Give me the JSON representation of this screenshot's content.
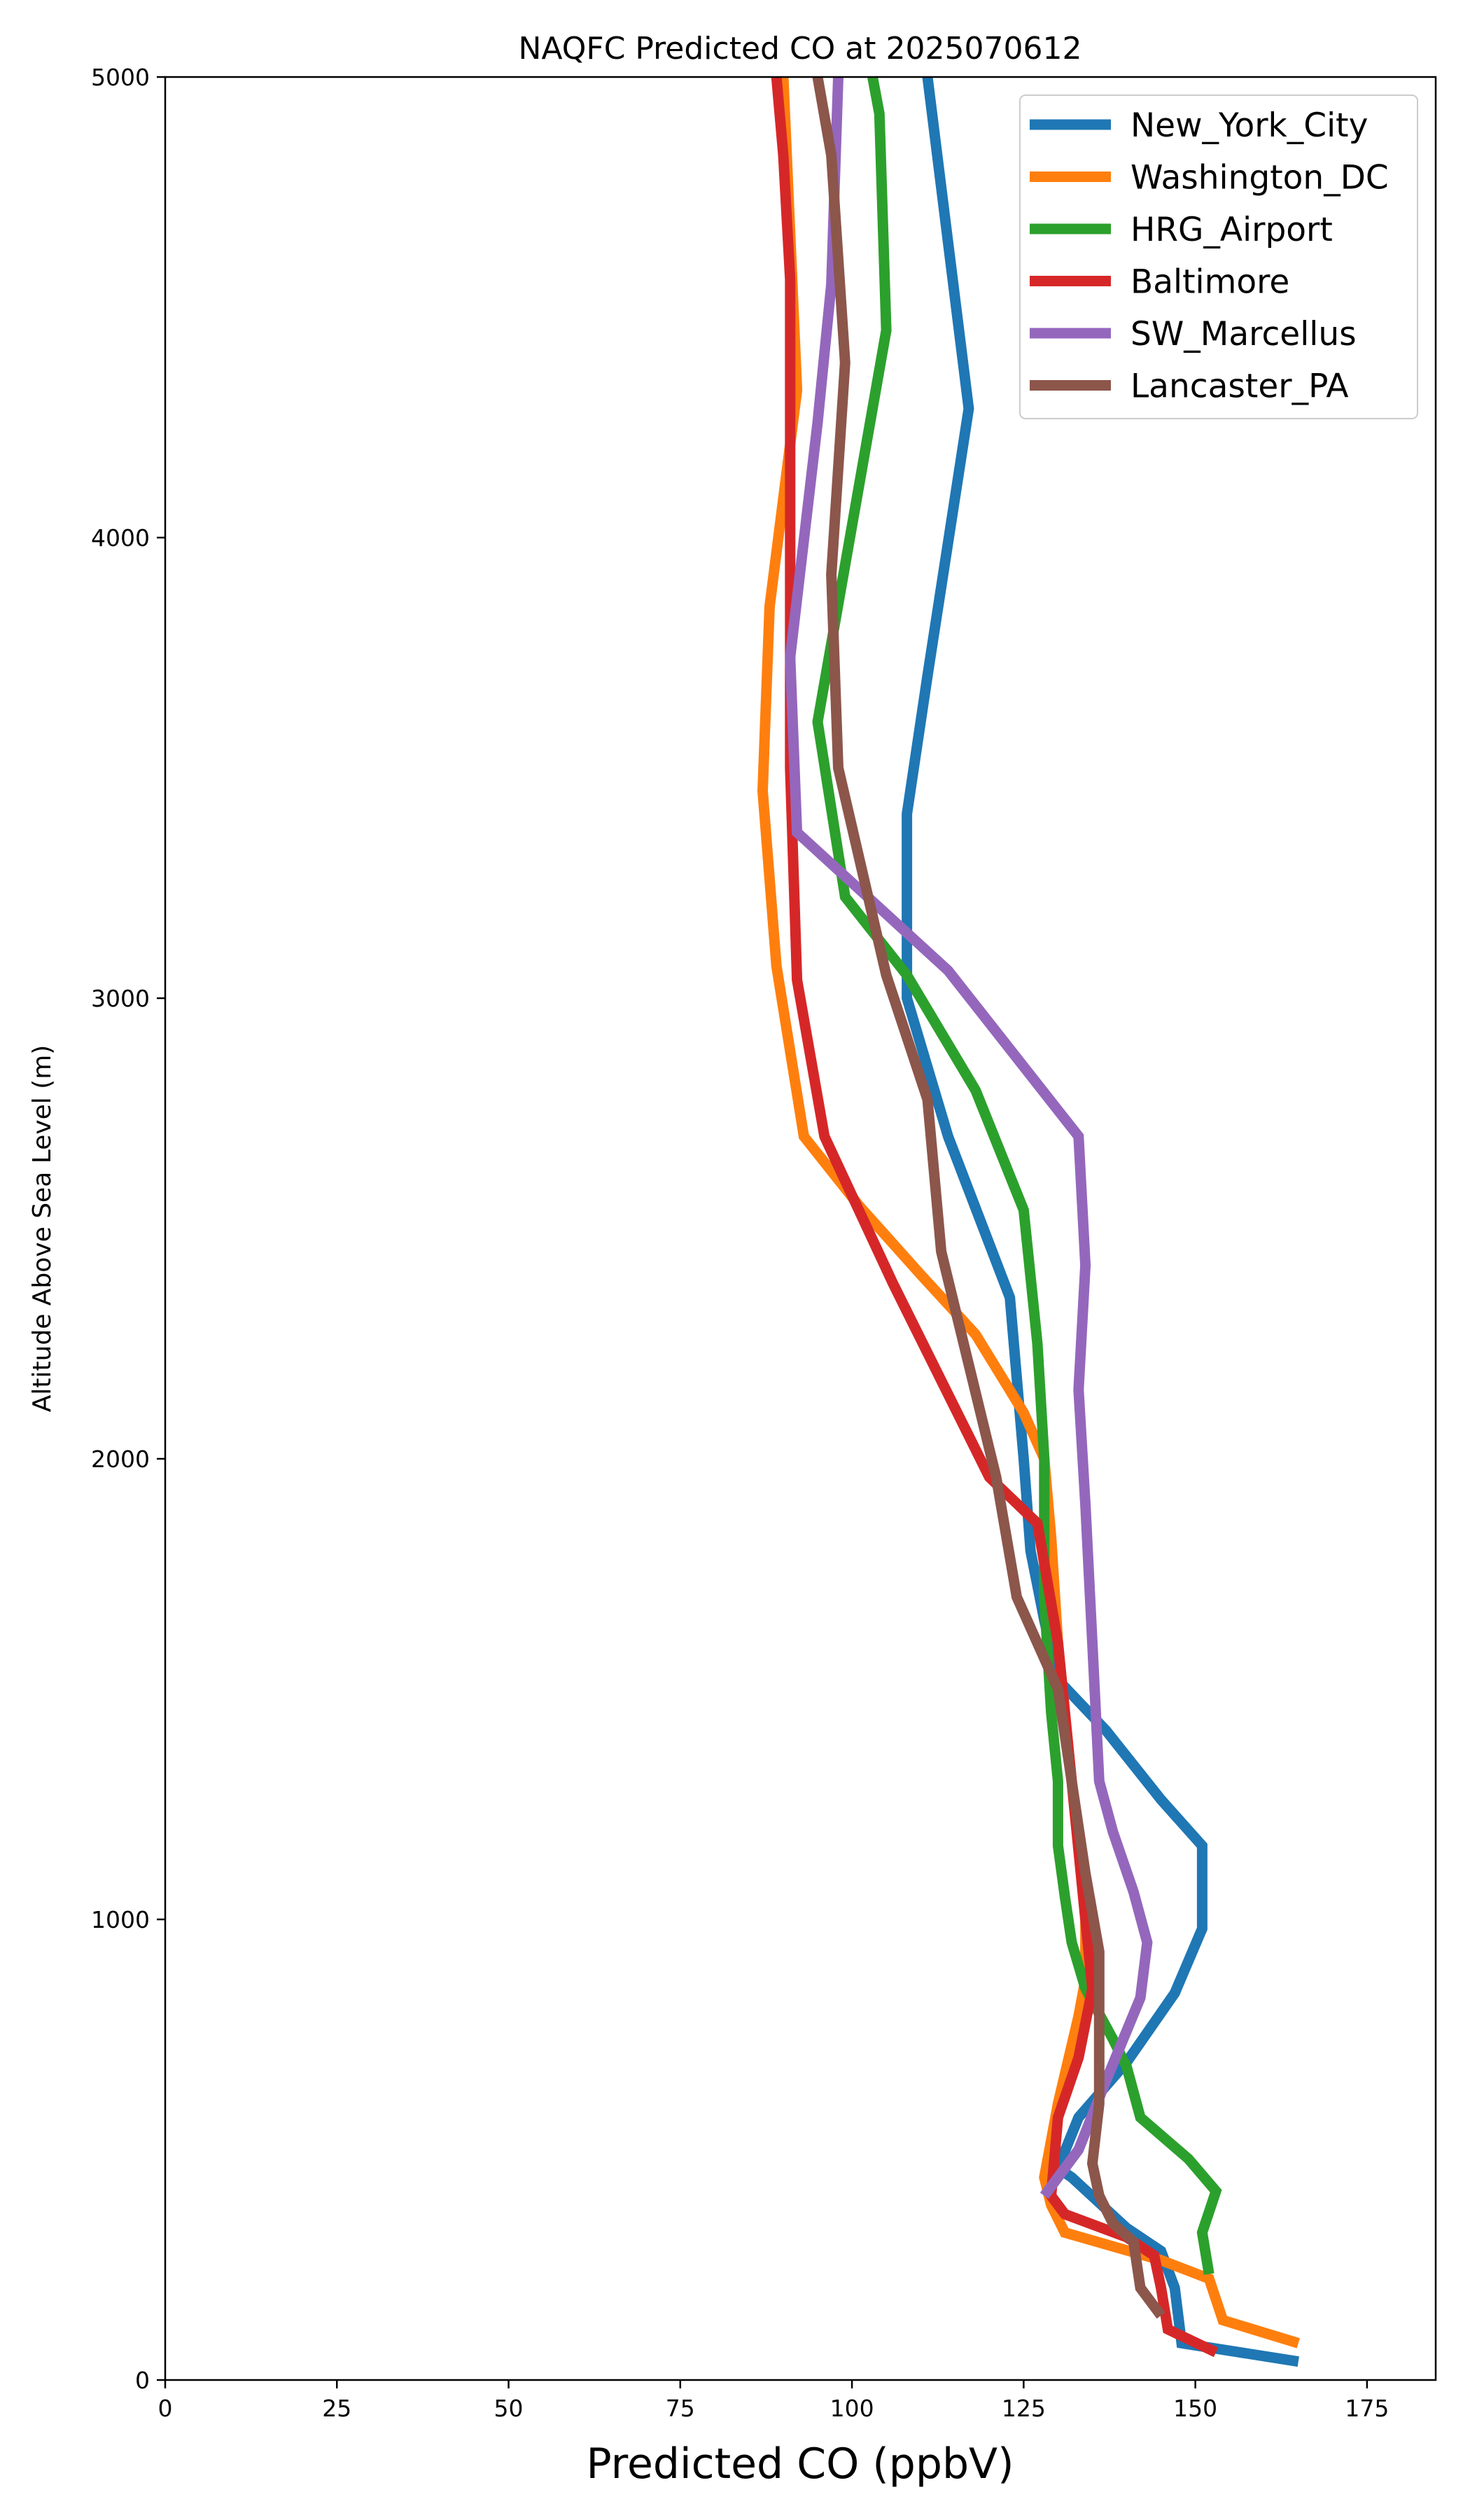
{
  "chart_data": {
    "type": "line",
    "title": "NAQFC Predicted CO at 2025070612",
    "xlabel": "Predicted CO (ppbV)",
    "ylabel": "Altitude Above Sea Level (m)",
    "xlim": [
      0,
      185
    ],
    "ylim": [
      0,
      5000
    ],
    "xticks": [
      0,
      25,
      50,
      75,
      100,
      125,
      150,
      175
    ],
    "yticks": [
      0,
      1000,
      2000,
      3000,
      4000,
      5000
    ],
    "grid": false,
    "legend_position": "top-right",
    "series": [
      {
        "name": "New_York_City",
        "color": "#1f77b4",
        "points": [
          [
            165,
            40
          ],
          [
            148,
            80
          ],
          [
            147,
            200
          ],
          [
            145,
            280
          ],
          [
            140,
            330
          ],
          [
            132,
            440
          ],
          [
            130,
            460
          ],
          [
            133,
            570
          ],
          [
            140,
            690
          ],
          [
            147,
            840
          ],
          [
            151,
            980
          ],
          [
            151,
            1160
          ],
          [
            145,
            1260
          ],
          [
            137,
            1410
          ],
          [
            130,
            1520
          ],
          [
            128,
            1650
          ],
          [
            126,
            1800
          ],
          [
            125,
            2000
          ],
          [
            123,
            2350
          ],
          [
            114,
            2700
          ],
          [
            108,
            3000
          ],
          [
            108,
            3400
          ],
          [
            111,
            3700
          ],
          [
            117,
            4280
          ],
          [
            111,
            5000
          ]
        ]
      },
      {
        "name": "Washington_DC",
        "color": "#ff7f0e",
        "points": [
          [
            165,
            80
          ],
          [
            154,
            130
          ],
          [
            152,
            220
          ],
          [
            145,
            260
          ],
          [
            131,
            320
          ],
          [
            129,
            380
          ],
          [
            128,
            440
          ],
          [
            130,
            600
          ],
          [
            133,
            790
          ],
          [
            134,
            870
          ],
          [
            134,
            1000
          ],
          [
            132,
            1300
          ],
          [
            130,
            1600
          ],
          [
            129,
            1830
          ],
          [
            128,
            2000
          ],
          [
            125,
            2100
          ],
          [
            118,
            2270
          ],
          [
            110,
            2400
          ],
          [
            101,
            2550
          ],
          [
            93,
            2700
          ],
          [
            89,
            3070
          ],
          [
            87,
            3450
          ],
          [
            88,
            3850
          ],
          [
            92,
            4320
          ],
          [
            90,
            5000
          ]
        ]
      },
      {
        "name": "HRG_Airport",
        "color": "#2ca02c",
        "points": [
          [
            152,
            230
          ],
          [
            151,
            320
          ],
          [
            153,
            410
          ],
          [
            149,
            480
          ],
          [
            142,
            570
          ],
          [
            140,
            680
          ],
          [
            138,
            740
          ],
          [
            134,
            850
          ],
          [
            132,
            950
          ],
          [
            131,
            1050
          ],
          [
            130,
            1160
          ],
          [
            130,
            1300
          ],
          [
            129,
            1450
          ],
          [
            128,
            1700
          ],
          [
            128,
            2000
          ],
          [
            127,
            2250
          ],
          [
            125,
            2540
          ],
          [
            118,
            2800
          ],
          [
            108,
            3050
          ],
          [
            99,
            3220
          ],
          [
            95,
            3600
          ],
          [
            105,
            4450
          ],
          [
            104,
            4920
          ],
          [
            103,
            5000
          ]
        ]
      },
      {
        "name": "Baltimore",
        "color": "#d62728",
        "points": [
          [
            153,
            60
          ],
          [
            146,
            110
          ],
          [
            145,
            200
          ],
          [
            144,
            270
          ],
          [
            140,
            310
          ],
          [
            131,
            360
          ],
          [
            129,
            400
          ],
          [
            130,
            570
          ],
          [
            133,
            700
          ],
          [
            135,
            850
          ],
          [
            134,
            1000
          ],
          [
            132,
            1300
          ],
          [
            130,
            1600
          ],
          [
            127,
            1860
          ],
          [
            120,
            1960
          ],
          [
            116,
            2080
          ],
          [
            106,
            2380
          ],
          [
            96,
            2700
          ],
          [
            92,
            3040
          ],
          [
            91,
            3500
          ],
          [
            91,
            4100
          ],
          [
            91,
            4560
          ],
          [
            90,
            4830
          ],
          [
            89,
            5000
          ]
        ]
      },
      {
        "name": "SW_Marcellus",
        "color": "#9467bd",
        "points": [
          [
            128,
            400
          ],
          [
            133,
            500
          ],
          [
            137,
            650
          ],
          [
            142,
            830
          ],
          [
            143,
            950
          ],
          [
            141,
            1060
          ],
          [
            138,
            1190
          ],
          [
            136,
            1300
          ],
          [
            135,
            1600
          ],
          [
            134,
            1900
          ],
          [
            133,
            2150
          ],
          [
            134,
            2420
          ],
          [
            133,
            2700
          ],
          [
            114,
            3060
          ],
          [
            92,
            3360
          ],
          [
            91,
            3740
          ],
          [
            95,
            4250
          ],
          [
            97,
            4550
          ],
          [
            98,
            5000
          ]
        ]
      },
      {
        "name": "Lancaster_PA",
        "color": "#8c564b",
        "points": [
          [
            145,
            140
          ],
          [
            142,
            200
          ],
          [
            141,
            300
          ],
          [
            138,
            340
          ],
          [
            136,
            400
          ],
          [
            135,
            470
          ],
          [
            136,
            600
          ],
          [
            136,
            800
          ],
          [
            136,
            930
          ],
          [
            134,
            1100
          ],
          [
            132,
            1300
          ],
          [
            130,
            1500
          ],
          [
            124,
            1700
          ],
          [
            121,
            1960
          ],
          [
            113,
            2450
          ],
          [
            111,
            2780
          ],
          [
            105,
            3050
          ],
          [
            98,
            3500
          ],
          [
            97,
            3920
          ],
          [
            99,
            4380
          ],
          [
            97,
            4830
          ],
          [
            95,
            5000
          ]
        ]
      }
    ]
  }
}
